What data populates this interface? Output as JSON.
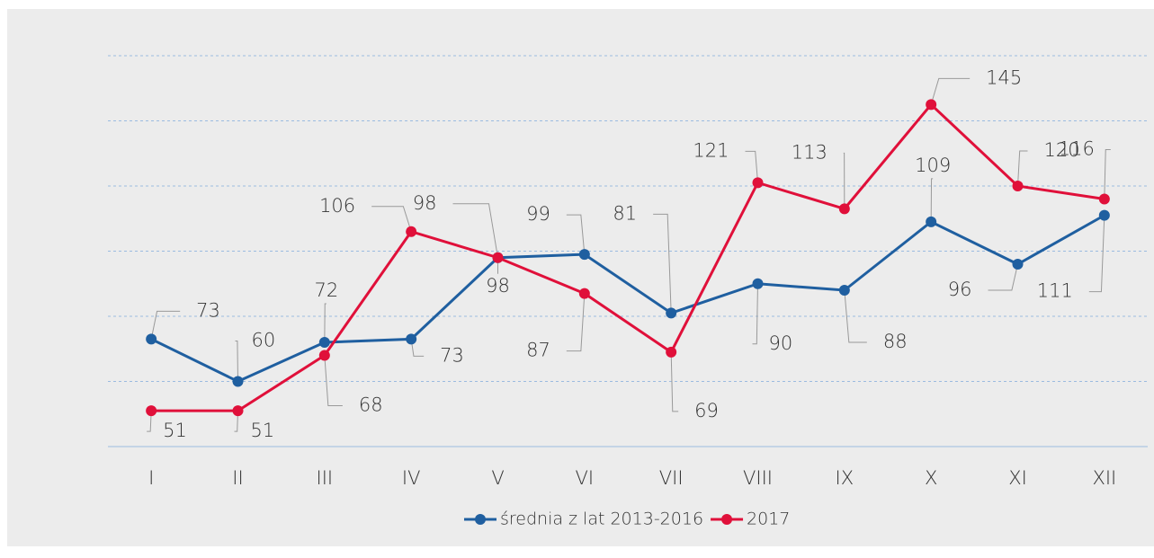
{
  "chart_data": {
    "type": "line",
    "categories": [
      "I",
      "II",
      "III",
      "IV",
      "V",
      "VI",
      "VII",
      "VIII",
      "IX",
      "X",
      "XI",
      "XII"
    ],
    "series": [
      {
        "name": "średnia z lat 2013-2016",
        "color": "#1f5fa0",
        "values": [
          73,
          60,
          72,
          73,
          98,
          99,
          81,
          90,
          88,
          109,
          96,
          111
        ]
      },
      {
        "name": "2017",
        "color": "#e0103a",
        "values": [
          51,
          51,
          68,
          106,
          98,
          87,
          69,
          121,
          113,
          145,
          120,
          116
        ]
      }
    ],
    "ylim": [
      40,
      160
    ],
    "yticks": [
      40,
      60,
      80,
      100,
      120,
      140,
      160
    ],
    "grid": true,
    "legend": "bottom"
  }
}
